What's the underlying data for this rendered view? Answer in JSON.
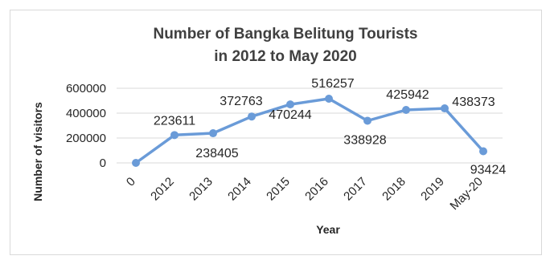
{
  "chart_data": {
    "type": "line",
    "title_line1": "Number of Bangka Belitung Tourists",
    "title_line2": "in 2012 to May 2020",
    "xlabel": "Year",
    "ylabel": "Number of visitors",
    "categories": [
      "0",
      "2012",
      "2013",
      "2014",
      "2015",
      "2016",
      "2017",
      "2018",
      "2019",
      "May-20"
    ],
    "series": [
      {
        "values": [
          0,
          223611,
          238405,
          372763,
          470244,
          516257,
          338928,
          425942,
          438373,
          93424
        ]
      }
    ],
    "data_labels": [
      "",
      "223611",
      "238405",
      "372763",
      "470244",
      "516257",
      "338928",
      "425942",
      "438373",
      "93424"
    ],
    "ylim": [
      0,
      600000
    ],
    "yticks": [
      "0",
      "200000",
      "400000",
      "600000"
    ],
    "grid": true,
    "color": "#6a9bd8"
  }
}
